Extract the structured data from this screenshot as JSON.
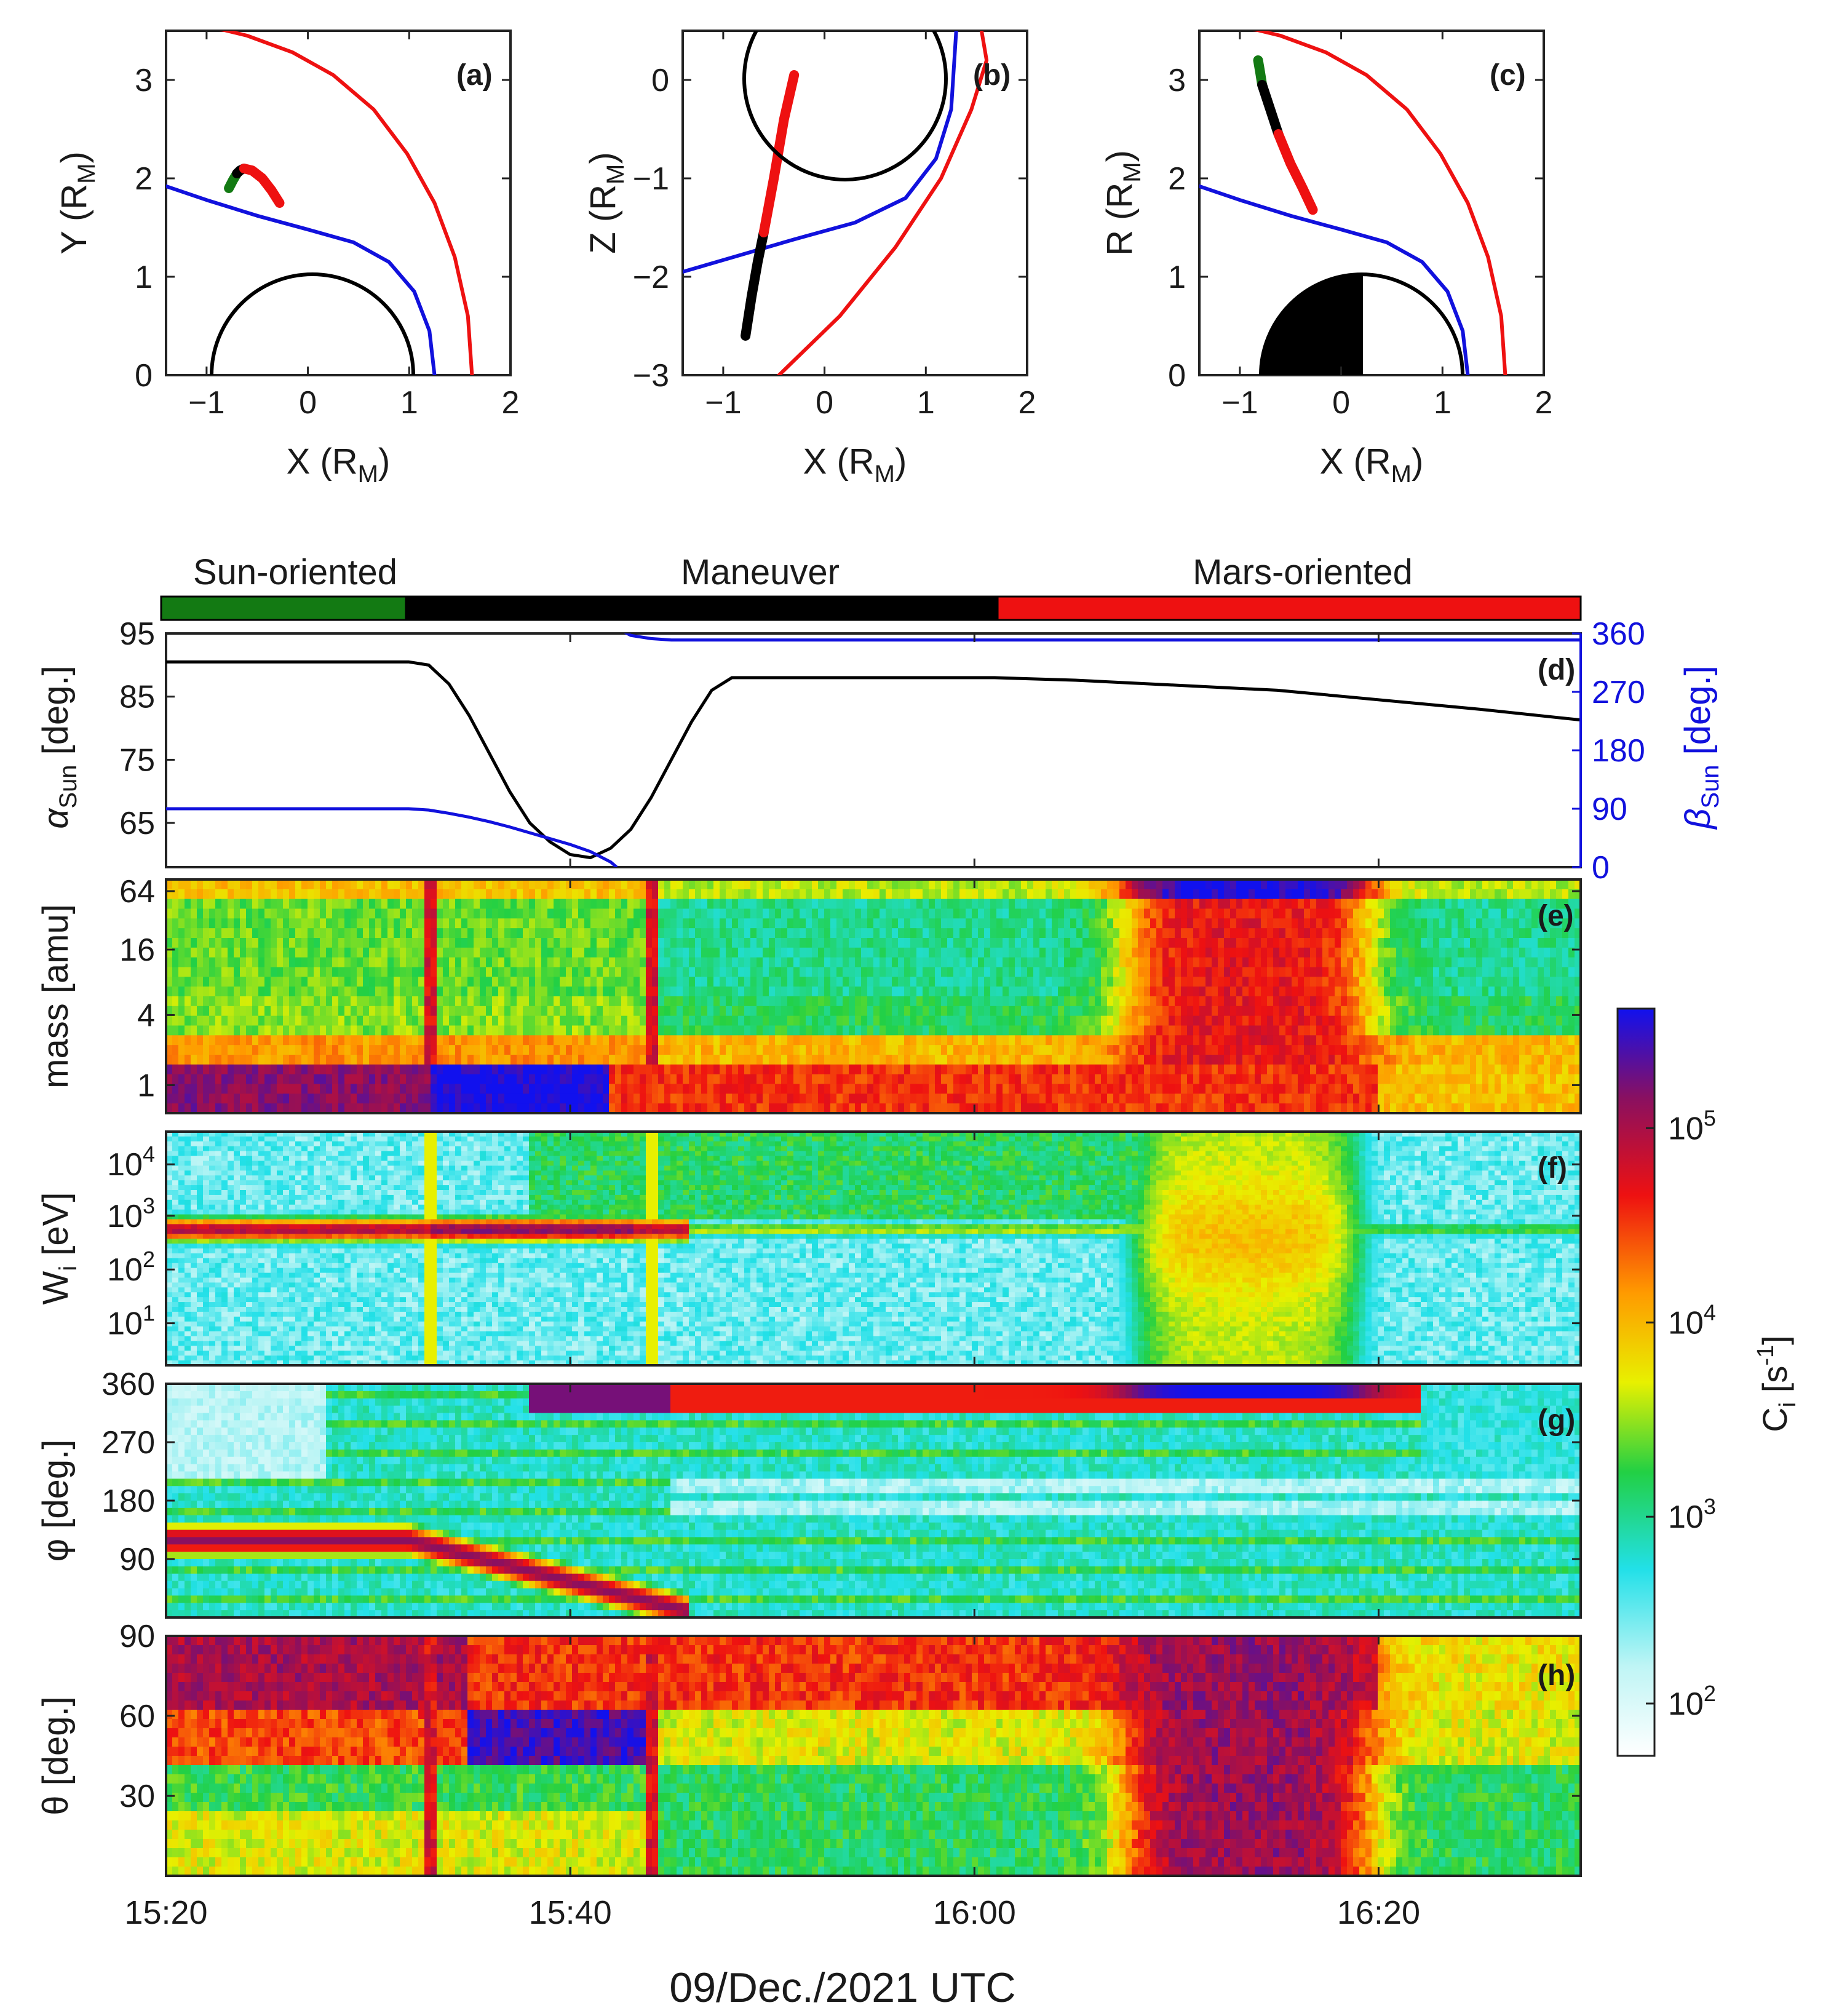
{
  "orbit_panels": [
    {
      "label": "(a)",
      "xlabel": "X (R",
      "xlabel_sub": "M",
      "ylabel": "Y (R",
      "ylabel_sub": "M",
      "xticks": [
        "−1",
        "0",
        "1",
        "2"
      ],
      "yticks": [
        "0",
        "1",
        "2",
        "3"
      ]
    },
    {
      "label": "(b)",
      "xlabel": "X (R",
      "xlabel_sub": "M",
      "ylabel": "Z (R",
      "ylabel_sub": "M",
      "xticks": [
        "−1",
        "0",
        "1",
        "2"
      ],
      "yticks": [
        "−3",
        "−2",
        "−1",
        "0"
      ]
    },
    {
      "label": "(c)",
      "xlabel": "X (R",
      "xlabel_sub": "M",
      "ylabel": "R (R",
      "ylabel_sub": "M",
      "xticks": [
        "−1",
        "0",
        "1",
        "2"
      ],
      "yticks": [
        "0",
        "1",
        "2",
        "3"
      ]
    }
  ],
  "mode_bar": {
    "segments": [
      {
        "label": "Sun-oriented",
        "start": "15:20",
        "end": "15:32",
        "color": "#137a13"
      },
      {
        "label": "Maneuver",
        "start": "15:32",
        "end": "16:01",
        "color": "#000000"
      },
      {
        "label": "Mars-oriented",
        "start": "16:01",
        "end": "16:30",
        "color": "#ee1111"
      }
    ]
  },
  "panels": {
    "d": {
      "label": "(d)",
      "ylabel_left": "α",
      "ylabel_left_sub": "Sun",
      "ylabel_left_unit": " [deg.]",
      "ylabel_right": "β",
      "ylabel_right_sub": "Sun",
      "ylabel_right_unit": " [deg.]",
      "left_ticks": [
        "95",
        "85",
        "75",
        "65"
      ],
      "right_ticks": [
        "360",
        "270",
        "180",
        "90",
        "0"
      ]
    },
    "e": {
      "label": "(e)",
      "ylabel": "mass [amu]",
      "ticks": [
        "64",
        "16",
        "4",
        "1"
      ]
    },
    "f": {
      "label": "(f)",
      "ylabel": "W",
      "ylabel_sub": "i",
      "ylabel_unit": " [eV]",
      "ticks": [
        {
          "b": "10",
          "e": "4"
        },
        {
          "b": "10",
          "e": "3"
        },
        {
          "b": "10",
          "e": "2"
        },
        {
          "b": "10",
          "e": "1"
        }
      ]
    },
    "g": {
      "label": "(g)",
      "ylabel": "φ [deg.]",
      "ticks": [
        "360",
        "270",
        "180",
        "90"
      ]
    },
    "h": {
      "label": "(h)",
      "ylabel": "θ [deg.]",
      "ticks": [
        "90",
        "60",
        "30"
      ]
    }
  },
  "time_axis": {
    "ticks": [
      "15:20",
      "15:40",
      "16:00",
      "16:20"
    ],
    "xlabel": "09/Dec./2021 UTC"
  },
  "colorbar": {
    "label": "C",
    "label_sub": "i",
    "label_unit": " [s",
    "label_sup": "-1",
    "label_end": "]",
    "ticks": [
      {
        "b": "10",
        "e": "5"
      },
      {
        "b": "10",
        "e": "4"
      },
      {
        "b": "10",
        "e": "3"
      },
      {
        "b": "10",
        "e": "2"
      }
    ]
  },
  "chart_data": [
    {
      "type": "line",
      "panel": "a",
      "x_range": [
        -1.4,
        2
      ],
      "y_range": [
        0,
        3.5
      ],
      "series": [
        {
          "color": "#ee1111",
          "x": [
            1.62,
            1.58,
            1.45,
            1.25,
            0.98,
            0.65,
            0.25,
            -0.15,
            -0.6,
            -1.0
          ],
          "y": [
            0,
            0.6,
            1.2,
            1.75,
            2.25,
            2.7,
            3.05,
            3.28,
            3.45,
            3.55
          ]
        },
        {
          "color": "#1111dd",
          "x": [
            1.25,
            1.2,
            1.05,
            0.8,
            0.45,
            0.0,
            -0.5,
            -1.0,
            -1.4
          ],
          "y": [
            0,
            0.45,
            0.85,
            1.15,
            1.35,
            1.48,
            1.62,
            1.78,
            1.92
          ]
        },
        {
          "color": "#137a13",
          "x": [
            -0.78,
            -0.74,
            -0.7
          ],
          "y": [
            1.9,
            1.98,
            2.05
          ]
        },
        {
          "color": "#000000",
          "x": [
            -0.7,
            -0.67,
            -0.63
          ],
          "y": [
            2.05,
            2.08,
            2.1
          ]
        },
        {
          "color": "#ee1111",
          "x": [
            -0.63,
            -0.55,
            -0.45,
            -0.36,
            -0.28
          ],
          "y": [
            2.1,
            2.08,
            2.0,
            1.88,
            1.75
          ]
        }
      ]
    },
    {
      "type": "line",
      "panel": "b",
      "x_range": [
        -1.4,
        2
      ],
      "y_range": [
        -3,
        0.5
      ],
      "series": [
        {
          "color": "#ee1111",
          "x": [
            -0.45,
            0.15,
            0.7,
            1.15,
            1.45,
            1.6,
            1.55
          ],
          "y": [
            -3.0,
            -2.4,
            -1.7,
            -1.0,
            -0.3,
            0.2,
            0.5
          ]
        },
        {
          "color": "#1111dd",
          "x": [
            -1.4,
            -0.9,
            -0.3,
            0.3,
            0.8,
            1.1,
            1.25,
            1.3
          ],
          "y": [
            -1.95,
            -1.8,
            -1.62,
            -1.45,
            -1.2,
            -0.8,
            -0.3,
            0.5
          ]
        },
        {
          "color": "#000000",
          "x": [
            -0.78,
            -0.72,
            -0.66,
            -0.6
          ],
          "y": [
            -2.6,
            -2.2,
            -1.85,
            -1.55
          ]
        },
        {
          "color": "#ee1111",
          "x": [
            -0.6,
            -0.5,
            -0.4,
            -0.3
          ],
          "y": [
            -1.55,
            -1.0,
            -0.4,
            0.05
          ]
        }
      ]
    },
    {
      "type": "line",
      "panel": "c",
      "x_range": [
        -1.4,
        2
      ],
      "y_range": [
        0,
        3.5
      ],
      "series": [
        {
          "color": "#ee1111",
          "x": [
            1.62,
            1.58,
            1.45,
            1.25,
            0.98,
            0.65,
            0.25,
            -0.15,
            -0.6,
            -1.0
          ],
          "y": [
            0,
            0.6,
            1.2,
            1.75,
            2.25,
            2.7,
            3.05,
            3.28,
            3.45,
            3.55
          ]
        },
        {
          "color": "#1111dd",
          "x": [
            1.25,
            1.2,
            1.05,
            0.8,
            0.45,
            0.0,
            -0.5,
            -1.0,
            -1.4
          ],
          "y": [
            0,
            0.45,
            0.85,
            1.15,
            1.35,
            1.48,
            1.62,
            1.78,
            1.92
          ]
        },
        {
          "color": "#137a13",
          "x": [
            -0.82,
            -0.8,
            -0.78
          ],
          "y": [
            3.2,
            3.08,
            2.95
          ]
        },
        {
          "color": "#000000",
          "x": [
            -0.78,
            -0.7,
            -0.62
          ],
          "y": [
            2.95,
            2.7,
            2.45
          ]
        },
        {
          "color": "#ee1111",
          "x": [
            -0.62,
            -0.5,
            -0.38,
            -0.28
          ],
          "y": [
            2.45,
            2.15,
            1.9,
            1.68
          ]
        }
      ]
    },
    {
      "type": "line",
      "panel": "d",
      "x_range_minutes": [
        0,
        70
      ],
      "left_range": [
        58,
        95
      ],
      "right_range": [
        0,
        360
      ],
      "series": [
        {
          "axis": "left",
          "color": "#000000",
          "x": [
            0,
            12,
            13,
            14,
            15,
            16,
            17,
            18,
            19,
            20,
            21,
            22,
            23,
            24,
            25,
            26,
            27,
            28,
            30,
            40,
            41,
            45,
            55,
            65,
            70
          ],
          "y": [
            90.5,
            90.5,
            90,
            87,
            82,
            76,
            70,
            65,
            62,
            60,
            59.5,
            61,
            64,
            69,
            75,
            81,
            86,
            88,
            88,
            88,
            88,
            87.6,
            86,
            83,
            81.3
          ]
        },
        {
          "axis": "right",
          "color": "#1111dd",
          "x": [
            0,
            12,
            13,
            14,
            15,
            16,
            17,
            18,
            19,
            20,
            21,
            22,
            22.3
          ],
          "y": [
            90,
            90,
            88,
            83,
            77,
            70,
            62,
            53,
            44,
            35,
            24,
            8,
            0
          ]
        },
        {
          "axis": "right",
          "color": "#1111dd",
          "x": [
            22,
            22.5,
            23,
            24,
            25,
            70
          ],
          "y": [
            380,
            365,
            357,
            352,
            350,
            350
          ]
        }
      ]
    },
    {
      "type": "heatmap",
      "panel": "e",
      "value": "C_i [s^-1]"
    },
    {
      "type": "heatmap",
      "panel": "f",
      "value": "C_i [s^-1]"
    },
    {
      "type": "heatmap",
      "panel": "g",
      "value": "C_i [s^-1]"
    },
    {
      "type": "heatmap",
      "panel": "h",
      "value": "C_i [s^-1]"
    }
  ]
}
